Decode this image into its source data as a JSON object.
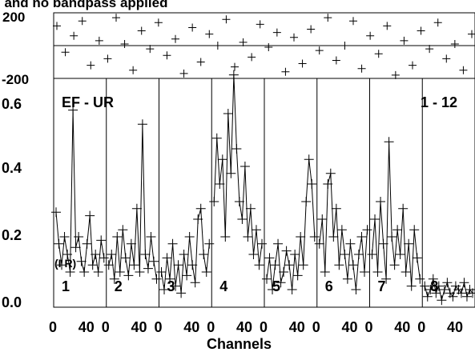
{
  "title": "l and no bandpass applied",
  "chart_data": [
    {
      "type": "scatter",
      "panel": "phase",
      "ylim": [
        -200,
        200
      ],
      "yticks": [
        "200",
        "-200"
      ],
      "xlim": [
        0,
        8
      ],
      "marker": "plus",
      "description_values": "uniformly scattered phase points between -180 and 180 degrees across all 8 channel blocks",
      "y": [
        120,
        -40,
        60,
        150,
        -120,
        30,
        -80,
        170,
        10,
        -150,
        90,
        -20,
        140,
        -60,
        40,
        -170,
        110,
        -100,
        70,
        0,
        160,
        -130,
        20,
        -70,
        130,
        -10,
        80,
        -160,
        50,
        -110,
        100,
        -30,
        170,
        -90,
        0,
        150,
        -140,
        60,
        -50,
        120,
        -180,
        30,
        -120,
        90,
        -20,
        140,
        -80,
        10,
        -150,
        70
      ]
    },
    {
      "type": "line",
      "panel": "amplitude",
      "baseline_label": "EF - UR",
      "range_label": "1 - 12",
      "xlabel": "Channels",
      "xticks_per_block": [
        "0",
        "40"
      ],
      "block_labels": [
        "1",
        "2",
        "3",
        "4",
        "5",
        "6",
        "7",
        "8"
      ],
      "ylim": [
        0,
        0.65
      ],
      "yticks": [
        "0.0",
        "0.2",
        "0.4",
        "0.6"
      ],
      "series": [
        {
          "block": "1",
          "values": [
            0.27,
            0.18,
            0.12,
            0.2,
            0.15,
            0.1,
            0.56,
            0.17,
            0.2,
            0.13,
            0.1,
            0.18,
            0.26,
            0.12,
            0.15,
            0.1,
            0.19,
            0.14
          ]
        },
        {
          "block": "2",
          "values": [
            0.12,
            0.15,
            0.08,
            0.2,
            0.1,
            0.22,
            0.14,
            0.09,
            0.18,
            0.12,
            0.28,
            0.1,
            0.52,
            0.15,
            0.11,
            0.2,
            0.13,
            0.08
          ]
        },
        {
          "block": "3",
          "values": [
            0.1,
            0.05,
            0.14,
            0.08,
            0.18,
            0.06,
            0.12,
            0.04,
            0.15,
            0.09,
            0.2,
            0.12,
            0.07,
            0.25,
            0.28,
            0.15,
            0.1,
            0.18
          ]
        },
        {
          "block": "4",
          "values": [
            0.3,
            0.48,
            0.35,
            0.42,
            0.2,
            0.55,
            0.38,
            0.66,
            0.45,
            0.3,
            0.25,
            0.4,
            0.2,
            0.28,
            0.15,
            0.22,
            0.12,
            0.18
          ]
        },
        {
          "block": "5",
          "values": [
            0.08,
            0.14,
            0.05,
            0.12,
            0.18,
            0.07,
            0.1,
            0.16,
            0.12,
            0.05,
            0.15,
            0.09,
            0.2,
            0.12,
            0.3,
            0.42,
            0.35,
            0.2
          ]
        },
        {
          "block": "6",
          "values": [
            0.18,
            0.25,
            0.1,
            0.35,
            0.38,
            0.2,
            0.28,
            0.12,
            0.22,
            0.15,
            0.08,
            0.18,
            0.12,
            0.05,
            0.15,
            0.2,
            0.1,
            0.22
          ]
        },
        {
          "block": "7",
          "values": [
            0.15,
            0.25,
            0.1,
            0.3,
            0.18,
            0.08,
            0.47,
            0.2,
            0.12,
            0.22,
            0.15,
            0.28,
            0.1,
            0.18,
            0.06,
            0.22,
            0.14,
            0.08
          ]
        },
        {
          "block": "8",
          "values": [
            0.06,
            0.03,
            0.05,
            0.08,
            0.04,
            0.06,
            0.02,
            0.05,
            0.07,
            0.04,
            0.03,
            0.06,
            0.05,
            0.04,
            0.07,
            0.03,
            0.05,
            0.04
          ]
        }
      ],
      "extra_label": "(I R)"
    }
  ]
}
